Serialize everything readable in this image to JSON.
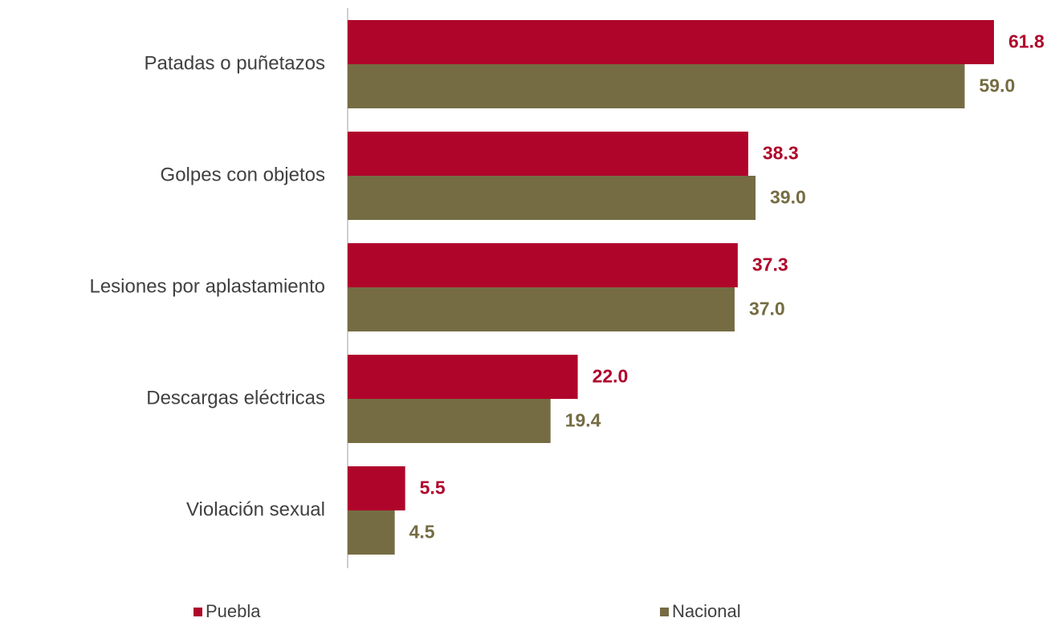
{
  "chart_data": {
    "type": "hbar",
    "categories": [
      "Patadas o puñetazos",
      "Golpes con objetos",
      "Lesiones por aplastamiento",
      "Descargas eléctricas",
      "Violación sexual"
    ],
    "series": [
      {
        "name": "Puebla",
        "color": "#b0052b",
        "values": [
          61.8,
          38.3,
          37.3,
          22.0,
          5.5
        ],
        "value_labels": [
          "61.8",
          "38.3",
          "37.3",
          "22.0",
          "5.5"
        ]
      },
      {
        "name": "Nacional",
        "color": "#756c43",
        "values": [
          59.0,
          39.0,
          37.0,
          19.4,
          4.5
        ],
        "value_labels": [
          "59.0",
          "39.0",
          "37.0",
          "19.4",
          "4.5"
        ]
      }
    ],
    "legend": "bottom"
  }
}
